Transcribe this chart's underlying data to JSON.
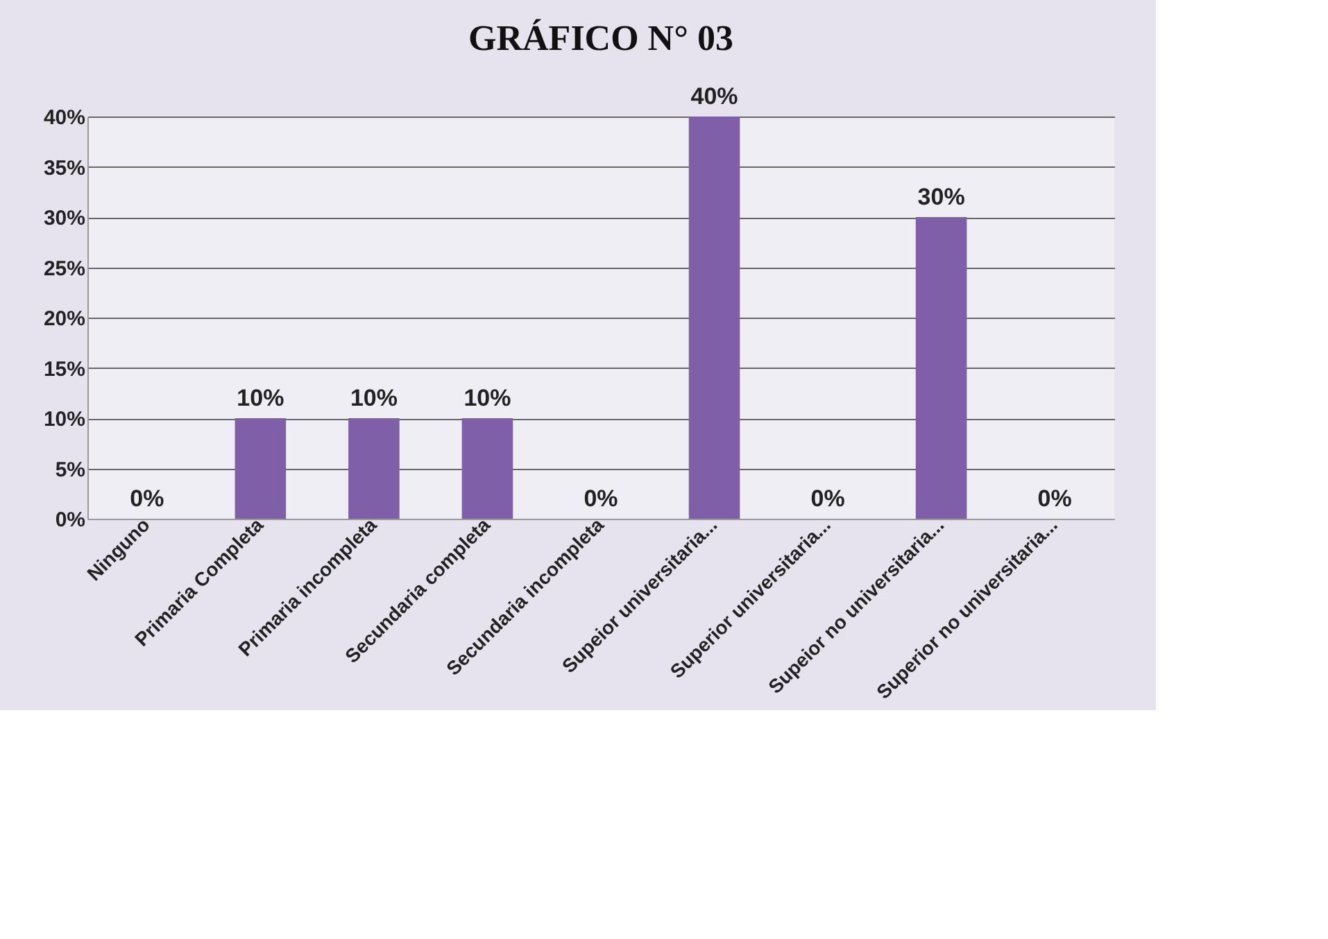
{
  "chart_data": {
    "type": "bar",
    "title": "GRÁFICO N° 03",
    "categories": [
      "Ninguno",
      "Primaria Completa",
      "Primaria incompleta",
      "Secundaria completa",
      "Secundaria incompleta",
      "Supeior universitaria...",
      "Superior universitaria...",
      "Supeior no universitaria...",
      "Superior no universitaria..."
    ],
    "values": [
      0,
      10,
      10,
      10,
      0,
      40,
      0,
      30,
      0
    ],
    "value_labels": [
      "0%",
      "10%",
      "10%",
      "10%",
      "0%",
      "40%",
      "0%",
      "30%",
      "0%"
    ],
    "color": "#7f5fa8",
    "ylim": [
      0,
      40
    ],
    "yticks": [
      {
        "value": 0,
        "label": "0%"
      },
      {
        "value": 5,
        "label": "5%"
      },
      {
        "value": 10,
        "label": "10%"
      },
      {
        "value": 15,
        "label": "15%"
      },
      {
        "value": 20,
        "label": "20%"
      },
      {
        "value": 25,
        "label": "25%"
      },
      {
        "value": 30,
        "label": "30%"
      },
      {
        "value": 35,
        "label": "35%"
      },
      {
        "value": 40,
        "label": "40%"
      }
    ],
    "grid": "y"
  }
}
